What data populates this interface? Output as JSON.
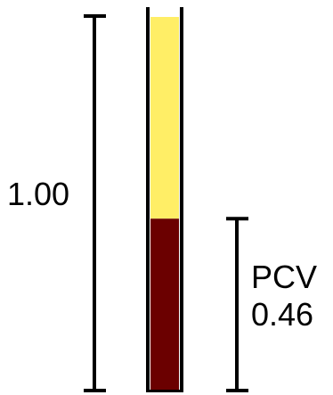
{
  "total_label": "1.00",
  "pcv": {
    "title": "PCV",
    "value_text": "0.46",
    "fraction": 0.46
  },
  "colors": {
    "plasma": "#FFEE66",
    "cells": "#6B0000",
    "tube": "#000000",
    "brackets": "#000000",
    "background": "#FFFFFF"
  }
}
